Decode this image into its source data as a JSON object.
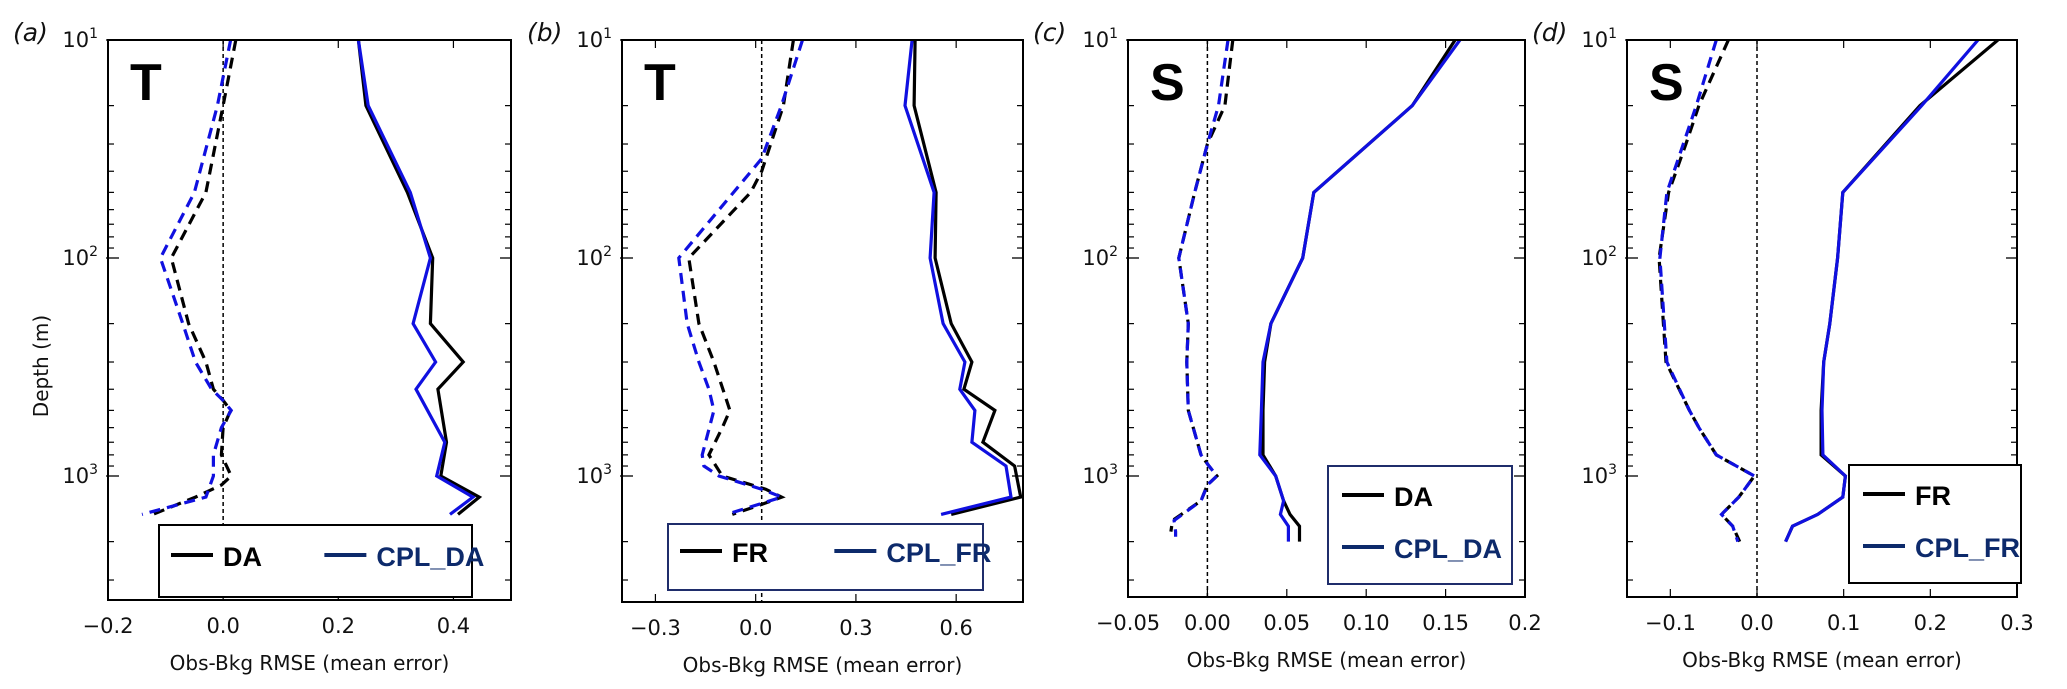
{
  "figure": {
    "y_axis_label": "Depth (m)",
    "x_axis_label": "Obs-Bkg RMSE (mean error)"
  },
  "colors": {
    "control": "#000000",
    "coupled": "#1010e0",
    "coupled_legend_text": "#0d2a6b",
    "legend_border_navy": "#1f2d6b"
  },
  "chart_data": [
    {
      "type": "line",
      "panel": "(a)",
      "variable": "T",
      "xlabel": "Obs-Bkg RMSE (mean error)",
      "ylabel": "Depth (m)",
      "xlim": [
        -0.2,
        0.5
      ],
      "ylim": [
        10,
        3700
      ],
      "yscale": "log",
      "y_inverted": true,
      "xticks": [
        -0.2,
        0.0,
        0.2,
        0.4
      ],
      "xtick_labels": [
        "−0.2",
        "0.0",
        "0.2",
        "0.4"
      ],
      "yticks": [
        10,
        100,
        1000
      ],
      "ytick_labels": [
        {
          "base": "10",
          "exp": "1"
        },
        {
          "base": "10",
          "exp": "2"
        },
        {
          "base": "10",
          "exp": "3"
        }
      ],
      "zero_line": 0.0,
      "legend": {
        "entries": [
          "DA",
          "CPL_DA"
        ],
        "layout": "horizontal",
        "placement": "bottom-center",
        "border": "black"
      },
      "series": [
        {
          "name": "DA",
          "kind": "rmse",
          "style": "solid",
          "color": "#000000",
          "x": [
            0.235,
            0.248,
            0.32,
            0.364,
            0.36,
            0.417,
            0.373,
            0.388,
            0.378,
            0.445,
            0.408
          ],
          "depth": [
            10,
            20,
            50,
            100,
            200,
            300,
            400,
            700,
            1000,
            1250,
            1500
          ]
        },
        {
          "name": "CPL_DA",
          "kind": "rmse",
          "style": "solid",
          "color": "#1010e0",
          "x": [
            0.235,
            0.252,
            0.325,
            0.36,
            0.33,
            0.369,
            0.335,
            0.385,
            0.371,
            0.434,
            0.394
          ],
          "depth": [
            10,
            20,
            50,
            100,
            200,
            300,
            400,
            700,
            1000,
            1250,
            1500
          ]
        },
        {
          "name": "DA",
          "kind": "mean error",
          "style": "dashed",
          "color": "#000000",
          "x": [
            0.022,
            0.0,
            -0.03,
            -0.09,
            -0.06,
            -0.03,
            -0.017,
            0.0,
            0.013,
            0.0,
            -0.003,
            0.014,
            -0.003,
            -0.048,
            -0.122
          ],
          "depth": [
            10,
            20,
            50,
            100,
            200,
            300,
            400,
            450,
            500,
            600,
            800,
            1000,
            1100,
            1250,
            1500
          ]
        },
        {
          "name": "CPL_DA",
          "kind": "mean error",
          "style": "dashed",
          "color": "#1010e0",
          "x": [
            0.013,
            -0.01,
            -0.05,
            -0.109,
            -0.07,
            -0.048,
            -0.02,
            0.0,
            0.014,
            -0.003,
            -0.017,
            -0.017,
            -0.03,
            -0.141
          ],
          "depth": [
            10,
            20,
            50,
            100,
            200,
            300,
            400,
            450,
            500,
            600,
            800,
            1000,
            1250,
            1500
          ]
        }
      ]
    },
    {
      "type": "line",
      "panel": "(b)",
      "variable": "T",
      "xlabel": "Obs-Bkg RMSE (mean error)",
      "ylabel": "",
      "xlim": [
        -0.4,
        0.8
      ],
      "ylim": [
        10,
        3700
      ],
      "yscale": "log",
      "y_inverted": true,
      "xticks": [
        -0.3,
        0.0,
        0.3,
        0.6
      ],
      "xtick_labels": [
        "−0.3",
        "0.0",
        "0.3",
        "0.6"
      ],
      "yticks": [
        10,
        100,
        1000
      ],
      "ytick_labels": [
        {
          "base": "10",
          "exp": "1"
        },
        {
          "base": "10",
          "exp": "2"
        },
        {
          "base": "10",
          "exp": "3"
        }
      ],
      "zero_line": 0.018,
      "legend": {
        "entries": [
          "FR",
          "CPL_FR"
        ],
        "layout": "horizontal",
        "placement": "bottom-center",
        "border": "navy"
      },
      "series": [
        {
          "name": "FR",
          "kind": "rmse",
          "style": "solid",
          "color": "#000000",
          "x": [
            0.477,
            0.474,
            0.54,
            0.537,
            0.585,
            0.647,
            0.623,
            0.716,
            0.68,
            0.775,
            0.793,
            0.585
          ],
          "depth": [
            10,
            20,
            50,
            100,
            200,
            300,
            400,
            500,
            700,
            900,
            1250,
            1500
          ]
        },
        {
          "name": "CPL_FR",
          "kind": "rmse",
          "style": "solid",
          "color": "#1010e0",
          "x": [
            0.468,
            0.447,
            0.534,
            0.522,
            0.561,
            0.626,
            0.611,
            0.656,
            0.647,
            0.749,
            0.764,
            0.555
          ],
          "depth": [
            10,
            20,
            50,
            100,
            200,
            300,
            400,
            500,
            700,
            900,
            1250,
            1500
          ]
        },
        {
          "name": "FR",
          "kind": "mean error",
          "style": "dashed",
          "color": "#000000",
          "x": [
            0.113,
            0.083,
            0.018,
            -0.015,
            -0.2,
            -0.17,
            -0.125,
            -0.077,
            -0.1,
            -0.14,
            -0.1,
            0.03,
            0.078,
            0.018,
            -0.07
          ],
          "depth": [
            10,
            20,
            40,
            50,
            100,
            200,
            300,
            500,
            600,
            800,
            1000,
            1150,
            1250,
            1350,
            1500
          ]
        },
        {
          "name": "CPL_FR",
          "kind": "mean error",
          "style": "dashed",
          "color": "#1010e0",
          "x": [
            0.14,
            0.077,
            0.018,
            -0.23,
            -0.205,
            -0.17,
            -0.14,
            -0.125,
            -0.16,
            -0.155,
            -0.11,
            0.018,
            0.078,
            -0.087
          ],
          "depth": [
            10,
            20,
            35,
            100,
            200,
            300,
            400,
            500,
            800,
            900,
            1000,
            1150,
            1250,
            1500
          ]
        }
      ]
    },
    {
      "type": "line",
      "panel": "(c)",
      "variable": "S",
      "xlabel": "Obs-Bkg RMSE (mean error)",
      "ylabel": "",
      "xlim": [
        -0.05,
        0.2
      ],
      "ylim": [
        10,
        3700
      ],
      "yscale": "log",
      "y_inverted": true,
      "xticks": [
        -0.05,
        0.0,
        0.05,
        0.1,
        0.15,
        0.2
      ],
      "xtick_labels": [
        "−0.05",
        "0.00",
        "0.05",
        "0.10",
        "0.15",
        "0.2"
      ],
      "yticks": [
        10,
        100,
        1000
      ],
      "ytick_labels": [
        {
          "base": "10",
          "exp": "1"
        },
        {
          "base": "10",
          "exp": "2"
        },
        {
          "base": "10",
          "exp": "3"
        }
      ],
      "zero_line": 0.0,
      "legend": {
        "entries": [
          "DA",
          "CPL_DA"
        ],
        "layout": "vertical",
        "placement": "lower-right",
        "border": "navy"
      },
      "series": [
        {
          "name": "DA",
          "kind": "rmse",
          "style": "solid",
          "color": "#000000",
          "x": [
            0.156,
            0.129,
            0.067,
            0.06,
            0.04,
            0.036,
            0.035,
            0.035,
            0.043,
            0.048,
            0.052,
            0.058,
            0.058
          ],
          "depth": [
            10,
            20,
            50,
            100,
            200,
            300,
            500,
            800,
            1000,
            1300,
            1500,
            1700,
            2000
          ]
        },
        {
          "name": "CPL_DA",
          "kind": "rmse",
          "style": "solid",
          "color": "#1010e0",
          "x": [
            0.159,
            0.129,
            0.067,
            0.06,
            0.04,
            0.035,
            0.034,
            0.033,
            0.043,
            0.048,
            0.046,
            0.051,
            0.051
          ],
          "depth": [
            10,
            20,
            50,
            100,
            200,
            300,
            500,
            800,
            1000,
            1300,
            1500,
            1700,
            2000
          ]
        },
        {
          "name": "DA",
          "kind": "mean error",
          "style": "dashed",
          "color": "#000000",
          "x": [
            0.016,
            0.011,
            0.0,
            -0.008,
            -0.018,
            -0.012,
            -0.013,
            -0.012,
            -0.004,
            0.001,
            0.006,
            0.0,
            -0.004,
            -0.022,
            -0.023
          ],
          "depth": [
            10,
            20,
            30,
            50,
            100,
            200,
            300,
            500,
            800,
            900,
            1000,
            1100,
            1300,
            1600,
            1800
          ]
        },
        {
          "name": "CPL_DA",
          "kind": "mean error",
          "style": "dashed",
          "color": "#1010e0",
          "x": [
            0.013,
            0.007,
            0.0,
            -0.008,
            -0.018,
            -0.012,
            -0.013,
            -0.012,
            -0.004,
            0.001,
            0.006,
            0.0,
            -0.004,
            -0.021,
            -0.02,
            -0.02
          ],
          "depth": [
            10,
            20,
            30,
            50,
            100,
            200,
            300,
            500,
            800,
            900,
            1000,
            1100,
            1300,
            1600,
            1800,
            1900
          ]
        }
      ]
    },
    {
      "type": "line",
      "panel": "(d)",
      "variable": "S",
      "xlabel": "Obs-Bkg RMSE (mean error)",
      "ylabel": "",
      "xlim": [
        -0.15,
        0.3
      ],
      "ylim": [
        10,
        3700
      ],
      "yscale": "log",
      "y_inverted": true,
      "xticks": [
        -0.1,
        0.0,
        0.1,
        0.2,
        0.3
      ],
      "xtick_labels": [
        "−0.1",
        "0.0",
        "0.1",
        "0.2",
        "0.3"
      ],
      "yticks": [
        10,
        100,
        1000
      ],
      "ytick_labels": [
        {
          "base": "10",
          "exp": "1"
        },
        {
          "base": "10",
          "exp": "2"
        },
        {
          "base": "10",
          "exp": "3"
        }
      ],
      "zero_line": 0.0,
      "legend": {
        "entries": [
          "FR",
          "CPL_FR"
        ],
        "layout": "vertical",
        "placement": "lower-right",
        "border": "black"
      },
      "series": [
        {
          "name": "FR",
          "kind": "rmse",
          "style": "solid",
          "color": "#000000",
          "x": [
            0.278,
            0.188,
            0.099,
            0.093,
            0.084,
            0.077,
            0.074,
            0.074,
            0.102,
            0.099,
            0.07,
            0.041,
            0.033
          ],
          "depth": [
            10,
            20,
            50,
            100,
            200,
            300,
            500,
            800,
            1000,
            1250,
            1500,
            1700,
            2000
          ]
        },
        {
          "name": "CPL_FR",
          "kind": "rmse",
          "style": "solid",
          "color": "#1010e0",
          "x": [
            0.255,
            0.19,
            0.099,
            0.093,
            0.084,
            0.077,
            0.075,
            0.076,
            0.102,
            0.099,
            0.07,
            0.041,
            0.033
          ],
          "depth": [
            10,
            20,
            50,
            100,
            200,
            300,
            500,
            800,
            1000,
            1250,
            1500,
            1700,
            2000
          ]
        },
        {
          "name": "FR",
          "kind": "mean error",
          "style": "dashed",
          "color": "#000000",
          "x": [
            -0.033,
            -0.067,
            -0.082,
            -0.102,
            -0.113,
            -0.108,
            -0.105,
            -0.078,
            -0.067,
            -0.047,
            -0.003,
            -0.021,
            -0.041,
            -0.028,
            -0.02
          ],
          "depth": [
            10,
            20,
            30,
            50,
            100,
            200,
            300,
            500,
            600,
            800,
            1000,
            1250,
            1500,
            1700,
            2000
          ]
        },
        {
          "name": "CPL_FR",
          "kind": "mean error",
          "style": "dashed",
          "color": "#1010e0",
          "x": [
            -0.047,
            -0.07,
            -0.085,
            -0.104,
            -0.112,
            -0.107,
            -0.104,
            -0.078,
            -0.067,
            -0.047,
            -0.003,
            -0.021,
            -0.041,
            -0.028,
            -0.022
          ],
          "depth": [
            10,
            20,
            30,
            50,
            100,
            200,
            300,
            500,
            600,
            800,
            1000,
            1250,
            1500,
            1700,
            2000
          ]
        }
      ]
    }
  ]
}
